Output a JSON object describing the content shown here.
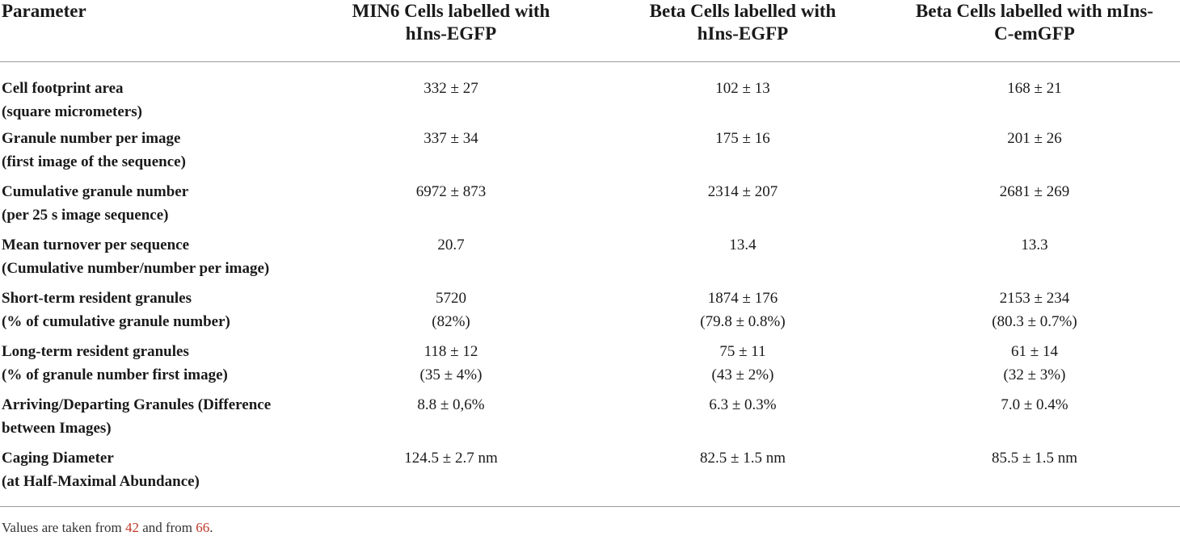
{
  "header": {
    "parameter": "Parameter",
    "columns": [
      {
        "line1": "MIN6 Cells labelled with",
        "line2": "hIns-EGFP"
      },
      {
        "line1": "Beta Cells labelled with",
        "line2": "hIns-EGFP"
      },
      {
        "line1": "Beta Cells labelled with mIns-",
        "line2": "C-emGFP"
      }
    ]
  },
  "rows": [
    {
      "param1": "Cell footprint area",
      "param2": "(square micrometers)",
      "values": [
        [
          "332 ± 27",
          ""
        ],
        [
          "102 ± 13",
          ""
        ],
        [
          "168 ± 21",
          ""
        ]
      ]
    },
    {
      "param1": "Granule number per image",
      "param2": "(first image of the sequence)",
      "values": [
        [
          "337 ± 34",
          ""
        ],
        [
          "175 ± 16",
          ""
        ],
        [
          "201 ± 26",
          ""
        ]
      ]
    },
    {
      "param1": "Cumulative granule number",
      "param2": "(per 25 s image sequence)",
      "values": [
        [
          "6972 ± 873",
          ""
        ],
        [
          "2314 ± 207",
          ""
        ],
        [
          "2681 ± 269",
          ""
        ]
      ]
    },
    {
      "param1": "Mean turnover per sequence",
      "param2": "(Cumulative number/number per image)",
      "values": [
        [
          "20.7",
          ""
        ],
        [
          "13.4",
          ""
        ],
        [
          "13.3",
          ""
        ]
      ]
    },
    {
      "param1": "Short-term resident granules",
      "param2": "(% of cumulative granule number)",
      "values": [
        [
          "5720",
          "(82%)"
        ],
        [
          "1874 ± 176",
          "(79.8 ± 0.8%)"
        ],
        [
          "2153 ± 234",
          "(80.3 ± 0.7%)"
        ]
      ]
    },
    {
      "param1": "Long-term resident granules",
      "param2": "(% of granule number first image)",
      "values": [
        [
          "118 ± 12",
          "(35 ± 4%)"
        ],
        [
          "75 ± 11",
          "(43 ± 2%)"
        ],
        [
          "61 ± 14",
          "(32 ± 3%)"
        ]
      ]
    },
    {
      "param1": "Arriving/Departing Granules (Difference",
      "param2": "between Images)",
      "values": [
        [
          "8.8 ± 0,6%",
          ""
        ],
        [
          "6.3 ± 0.3%",
          ""
        ],
        [
          "7.0 ± 0.4%",
          ""
        ]
      ]
    },
    {
      "param1": "Caging Diameter",
      "param2": "(at Half-Maximal Abundance)",
      "values": [
        [
          "124.5 ± 2.7 nm",
          ""
        ],
        [
          "82.5 ± 1.5 nm",
          ""
        ],
        [
          "85.5 ± 1.5 nm",
          ""
        ]
      ]
    }
  ],
  "footnote": {
    "prefix": "Values are taken from ",
    "ref1": "42",
    "middle": " and from ",
    "ref2": "66",
    "suffix": "."
  }
}
